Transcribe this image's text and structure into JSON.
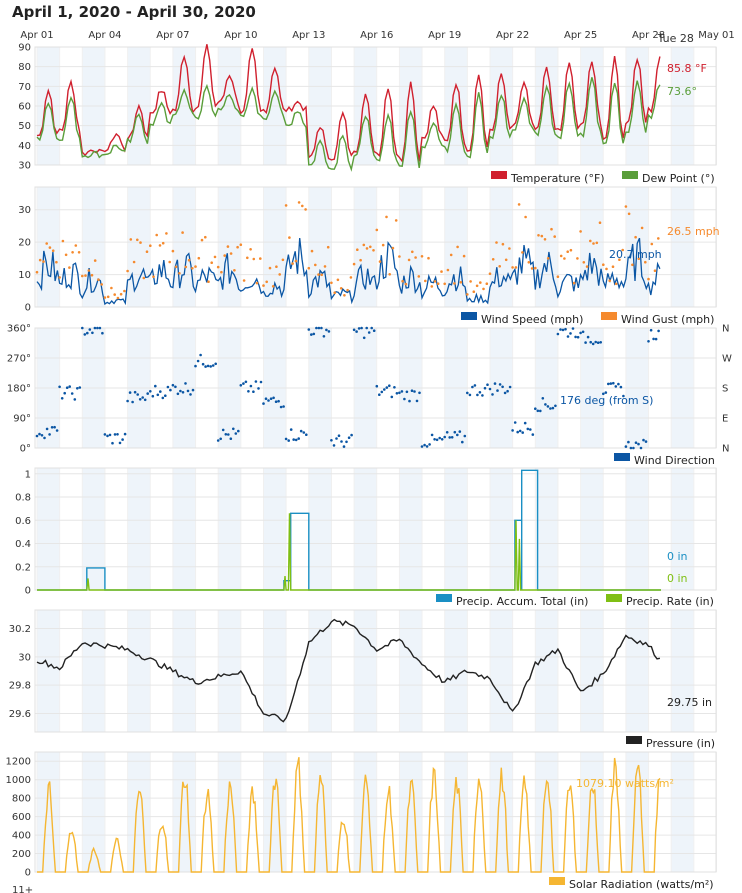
{
  "title": "April 1, 2020 - April 30, 2020",
  "hover_date": "Tue 28",
  "x_ticks": [
    "Apr 01",
    "Apr 04",
    "Apr 07",
    "Apr 10",
    "Apr 13",
    "Apr 16",
    "Apr 19",
    "Apr 22",
    "Apr 25",
    "Apr 28",
    "May 01"
  ],
  "colors": {
    "temperature": "#d0202e",
    "dew_point": "#5a9e3a",
    "wind_speed": "#0b56a4",
    "wind_gust": "#f58a2e",
    "wind_dir": "#0b56a4",
    "precip_total": "#1a8fc4",
    "precip_rate": "#7fbf14",
    "pressure": "#222222",
    "solar": "#f5b632",
    "grid": "#e6e6e6",
    "band": "#eef4fa"
  },
  "chart_data": [
    {
      "type": "line",
      "x_range": [
        "Apr 01",
        "May 01"
      ],
      "ylim": [
        30,
        90
      ],
      "yticks": [
        "30",
        "40",
        "50",
        "60",
        "70",
        "80",
        "90"
      ],
      "series": [
        {
          "name": "Temperature (°F)",
          "current": "85.8 °F",
          "daily_min": [
            45,
            48,
            36,
            38,
            44,
            57,
            58,
            60,
            62,
            57,
            58,
            58,
            34,
            34,
            38,
            36,
            33,
            44,
            42,
            38,
            48,
            50,
            48,
            48,
            52,
            44,
            52,
            58,
            62,
            62
          ],
          "daily_max": [
            68,
            72,
            38,
            46,
            60,
            68,
            86,
            90,
            76,
            88,
            80,
            62,
            50,
            56,
            66,
            70,
            72,
            60,
            72,
            76,
            76,
            72,
            80,
            82,
            82,
            84,
            84,
            84,
            86,
            86
          ]
        },
        {
          "name": "Dew Point (°)",
          "current": "73.6°",
          "daily_min": [
            44,
            44,
            35,
            36,
            42,
            50,
            55,
            54,
            58,
            54,
            54,
            50,
            30,
            28,
            34,
            32,
            30,
            40,
            38,
            35,
            44,
            48,
            46,
            45,
            46,
            40,
            47,
            55,
            56,
            56
          ],
          "daily_max": [
            62,
            64,
            36,
            40,
            56,
            62,
            68,
            70,
            66,
            68,
            68,
            58,
            42,
            46,
            56,
            56,
            58,
            52,
            62,
            66,
            66,
            64,
            70,
            72,
            74,
            72,
            72,
            72,
            74,
            74
          ]
        }
      ]
    },
    {
      "type": "line",
      "ylim": [
        0,
        37
      ],
      "yticks": [
        "0",
        "10",
        "20",
        "30"
      ],
      "series": [
        {
          "name": "Wind Speed (mph)",
          "current": "20.7 mph",
          "daily_max": [
            19,
            16,
            13,
            3,
            15,
            17,
            18,
            14,
            17,
            14,
            10,
            23,
            13,
            6,
            14,
            22,
            14,
            11,
            14,
            4,
            14,
            20,
            19,
            12,
            19,
            14,
            22,
            14,
            12,
            21
          ]
        },
        {
          "name": "Wind Gust (mph)",
          "current": "26.5 mph",
          "daily_max": [
            26,
            24,
            19,
            6,
            21,
            24,
            25,
            22,
            24,
            20,
            15,
            34,
            20,
            10,
            20,
            28,
            20,
            16,
            20,
            8,
            20,
            33,
            26,
            18,
            28,
            20,
            33,
            22,
            18,
            27
          ]
        }
      ]
    },
    {
      "type": "scatter",
      "ylim": [
        0,
        360
      ],
      "yticks": [
        "0°",
        "90°",
        "180°",
        "270°",
        "360°"
      ],
      "right_labels": [
        "N",
        "E",
        "S",
        "W",
        "N"
      ],
      "series": [
        {
          "name": "Wind Direction",
          "current": "176 deg (from S)",
          "daily_mean": [
            50,
            165,
            355,
            30,
            150,
            170,
            180,
            260,
            40,
            180,
            140,
            40,
            355,
            20,
            350,
            170,
            160,
            20,
            30,
            175,
            180,
            60,
            130,
            350,
            330,
            175,
            5,
            340,
            180,
            180
          ]
        }
      ]
    },
    {
      "type": "area",
      "ylim": [
        0,
        1.05
      ],
      "yticks": [
        "0",
        "0.2",
        "0.4",
        "0.6",
        "0.8",
        "1"
      ],
      "series": [
        {
          "name": "Precip. Accum. Total (in)",
          "current": "0 in",
          "events": [
            {
              "start": 2.2,
              "end": 3.0,
              "value": 0.19
            },
            {
              "start": 10.9,
              "end": 11.2,
              "value": 0.08
            },
            {
              "start": 11.2,
              "end": 12.0,
              "value": 0.66
            },
            {
              "start": 21.1,
              "end": 21.4,
              "value": 0.6
            },
            {
              "start": 21.4,
              "end": 22.1,
              "value": 1.03
            }
          ]
        },
        {
          "name": "Precip. Rate (in)",
          "current": "0 in",
          "spikes": [
            {
              "at": 2.25,
              "value": 0.1
            },
            {
              "at": 10.95,
              "value": 0.12
            },
            {
              "at": 11.15,
              "value": 0.66
            },
            {
              "at": 21.15,
              "value": 0.6
            },
            {
              "at": 21.3,
              "value": 0.44
            }
          ]
        }
      ]
    },
    {
      "type": "line",
      "ylim": [
        29.47,
        30.33
      ],
      "yticks": [
        "29.6",
        "29.8",
        "30",
        "30.2"
      ],
      "series": [
        {
          "name": "Pressure (in)",
          "current": "29.75 in",
          "daily": [
            29.98,
            29.92,
            30.1,
            30.08,
            30.05,
            29.98,
            29.9,
            29.82,
            29.86,
            29.9,
            29.6,
            29.55,
            30.1,
            30.25,
            30.22,
            30.05,
            30.12,
            29.95,
            29.82,
            29.9,
            29.85,
            29.6,
            29.95,
            30.05,
            29.75,
            29.88,
            30.15,
            30.08,
            29.88,
            29.78
          ]
        }
      ]
    },
    {
      "type": "line",
      "ylim": [
        0,
        1300
      ],
      "yticks": [
        "0",
        "200",
        "400",
        "600",
        "800",
        "1000",
        "1200"
      ],
      "series": [
        {
          "name": "Solar Radiation (watts/m²)",
          "current": "1079.10 watts/m²",
          "daily_peak": [
            1010,
            500,
            260,
            380,
            1000,
            640,
            1180,
            980,
            1050,
            950,
            1180,
            1300,
            1180,
            680,
            1100,
            980,
            1050,
            1170,
            1100,
            1200,
            1160,
            1060,
            1190,
            1050,
            1080,
            1280,
            1240,
            1250,
            1080,
            1080
          ]
        }
      ]
    }
  ],
  "footer_partial": "11+"
}
